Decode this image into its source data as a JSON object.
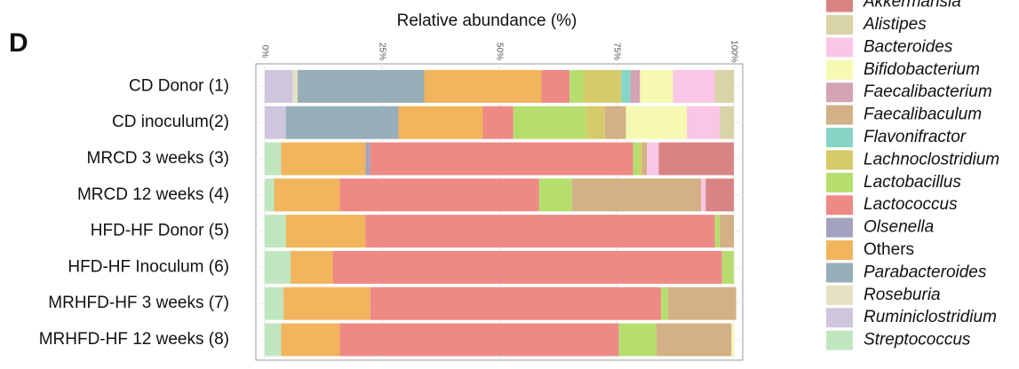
{
  "chart_data": {
    "type": "stacked-bar-horizontal",
    "panel": "D",
    "title": "Relative abundance (%)",
    "categories": [
      "CD Donor (1)",
      "CD inoculum(2)",
      "MRCD 3 weeks (3)",
      "MRCD 12 weeks (4)",
      "HFD-HF Donor (5)",
      "HFD-HF Inoculum (6)",
      "MRHFD-HF 3 weeks (7)",
      "MRHFD-HF 12 weeks (8)"
    ],
    "xlim": [
      0,
      100
    ],
    "xticks": [
      {
        "value": 0,
        "label": "0%"
      },
      {
        "value": 25,
        "label": "25%"
      },
      {
        "value": 50,
        "label": "50%"
      },
      {
        "value": 75,
        "label": "75%"
      },
      {
        "value": 100,
        "label": "100%"
      }
    ],
    "grid": true,
    "series": [
      {
        "name": "Akkermansia",
        "color": "#d98484",
        "values": [
          0,
          0,
          16,
          6,
          0,
          0,
          0,
          0
        ]
      },
      {
        "name": "Alistipes",
        "color": "#d9d3a8",
        "values": [
          4,
          3,
          0,
          0,
          0,
          0,
          0,
          0
        ]
      },
      {
        "name": "Bacteroides",
        "color": "#f9c6e6",
        "values": [
          9,
          7,
          2.5,
          1,
          0,
          0,
          0,
          0
        ]
      },
      {
        "name": "Bifidobacterium",
        "color": "#f6f9b2",
        "values": [
          7,
          13,
          0,
          0,
          0,
          0,
          0,
          0.5
        ]
      },
      {
        "name": "Faecalibacterium",
        "color": "#d4a3b4",
        "values": [
          2,
          0,
          0,
          0,
          0,
          0,
          0,
          0
        ]
      },
      {
        "name": "Faecalibaculum",
        "color": "#d3b085",
        "values": [
          0,
          4.5,
          1,
          27.5,
          3,
          0,
          14.5,
          16
        ]
      },
      {
        "name": "Flavonifractor",
        "color": "#87d5c6",
        "values": [
          2,
          0,
          0,
          0,
          0,
          0,
          0,
          0
        ]
      },
      {
        "name": "Lachnoclostridium",
        "color": "#d5cb68",
        "values": [
          8,
          4,
          0.5,
          0,
          0,
          0,
          0,
          0
        ]
      },
      {
        "name": "Lactobacillus",
        "color": "#b6de6e",
        "values": [
          3,
          15.5,
          1.5,
          7,
          1,
          2.5,
          1.5,
          8
        ]
      },
      {
        "name": "Lactococcus",
        "color": "#ee8a85",
        "values": [
          6,
          6.5,
          56,
          42.5,
          74.5,
          83,
          62,
          59.5
        ]
      },
      {
        "name": "Olsenella",
        "color": "#a3a3bf",
        "values": [
          0,
          0,
          1,
          0,
          0,
          0,
          0,
          0
        ]
      },
      {
        "name": "Others",
        "color": "#f1b55d",
        "values": [
          25,
          18,
          18,
          14,
          17,
          9,
          18.5,
          12.5
        ]
      },
      {
        "name": "Parabacteroides",
        "color": "#97aeb9",
        "values": [
          27,
          24,
          0,
          0,
          0,
          0,
          0,
          0
        ]
      },
      {
        "name": "Roseburia",
        "color": "#e4e2c2",
        "values": [
          1,
          0,
          0,
          0,
          0,
          0,
          0,
          0
        ]
      },
      {
        "name": "Ruminiclostridium",
        "color": "#cec6dc",
        "values": [
          6,
          4.5,
          0,
          0,
          0,
          0,
          0,
          0
        ]
      },
      {
        "name": "Streptococcus",
        "color": "#c0e6bf",
        "values": [
          0,
          0,
          3.5,
          2,
          4.5,
          5.5,
          4,
          3.5
        ]
      }
    ]
  }
}
